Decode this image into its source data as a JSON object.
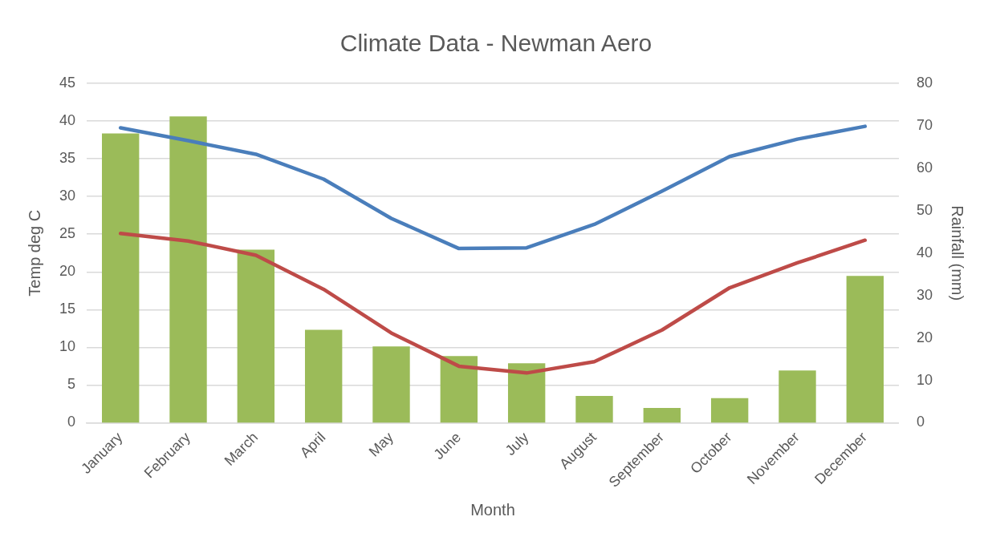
{
  "chart_data": {
    "type": "bar",
    "title": "Climate Data - Newman Aero",
    "xlabel": "Month",
    "ylabel": "Temp deg C",
    "y2label": "Rainfall (mm)",
    "categories": [
      "January",
      "February",
      "March",
      "April",
      "May",
      "June",
      "July",
      "August",
      "September",
      "October",
      "November",
      "December"
    ],
    "series": [
      {
        "type": "line",
        "color": "#4a7ebb",
        "values": [
          39.1,
          37.4,
          35.6,
          32.3,
          27.1,
          23.1,
          23.2,
          26.3,
          30.7,
          35.3,
          37.6,
          39.3
        ]
      },
      {
        "type": "line",
        "color": "#be4b48",
        "values": [
          25.1,
          24.1,
          22.2,
          17.7,
          11.9,
          7.5,
          6.6,
          8.1,
          12.3,
          17.9,
          21.2,
          24.2
        ]
      },
      {
        "axis": "y2",
        "color": "#9bbb59",
        "values": [
          68.2,
          72.2,
          40.8,
          21.9,
          18.0,
          15.7,
          14.0,
          6.3,
          3.5,
          5.8,
          12.3,
          34.6
        ]
      }
    ],
    "ylim": [
      0,
      45
    ],
    "yticks": [
      0,
      5,
      10,
      15,
      20,
      25,
      30,
      35,
      40,
      45
    ],
    "y2lim": [
      0,
      80
    ],
    "y2ticks": [
      0,
      10,
      20,
      30,
      40,
      50,
      60,
      70,
      80
    ],
    "grid": "y",
    "legend": false,
    "marker": "none",
    "line_style": "solid"
  }
}
